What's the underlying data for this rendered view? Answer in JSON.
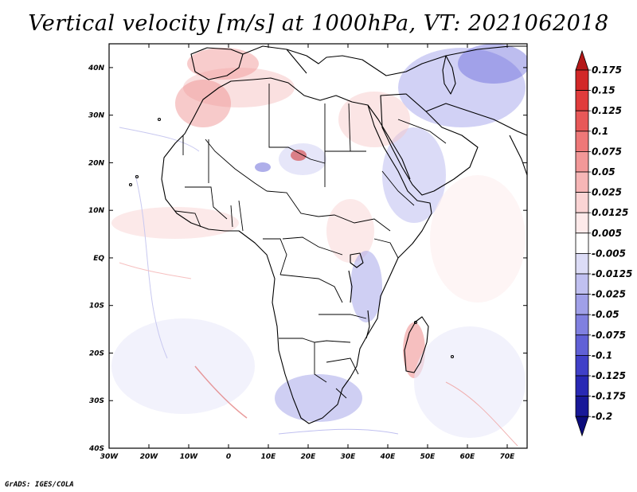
{
  "title": "Vertical velocity [m/s] at 1000hPa, VT: 2021062018",
  "credit": "GrADS: IGES/COLA",
  "map": {
    "region": "Africa",
    "lon_range": [
      -30,
      75
    ],
    "lat_range": [
      -40,
      45
    ],
    "lat_labels": [
      "40N",
      "30N",
      "20N",
      "10N",
      "EQ",
      "10S",
      "20S",
      "30S",
      "40S"
    ],
    "lat_values": [
      40,
      30,
      20,
      10,
      0,
      -10,
      -20,
      -30,
      -40
    ],
    "lon_labels": [
      "30W",
      "20W",
      "10W",
      "0",
      "10E",
      "20E",
      "30E",
      "40E",
      "50E",
      "60E",
      "70E"
    ],
    "lon_values": [
      -30,
      -20,
      -10,
      0,
      10,
      20,
      30,
      40,
      50,
      60,
      70
    ]
  },
  "colorbar": {
    "labels": [
      "0.175",
      "0.15",
      "0.125",
      "0.1",
      "0.075",
      "0.05",
      "0.025",
      "0.0125",
      "0.005",
      "-0.005",
      "-0.0125",
      "-0.025",
      "-0.05",
      "-0.075",
      "-0.1",
      "-0.125",
      "-0.175",
      "-0.2"
    ],
    "colors": [
      "#b41818",
      "#d22828",
      "#e03c3c",
      "#e85858",
      "#ee7878",
      "#f29898",
      "#f6b6b6",
      "#fad4d4",
      "#fdeaea",
      "#ffffff",
      "#dcdcf6",
      "#c0c0f0",
      "#a0a0e8",
      "#8080e0",
      "#6060d6",
      "#4040c8",
      "#2828b4",
      "#181898",
      "#0c0c7c"
    ]
  }
}
